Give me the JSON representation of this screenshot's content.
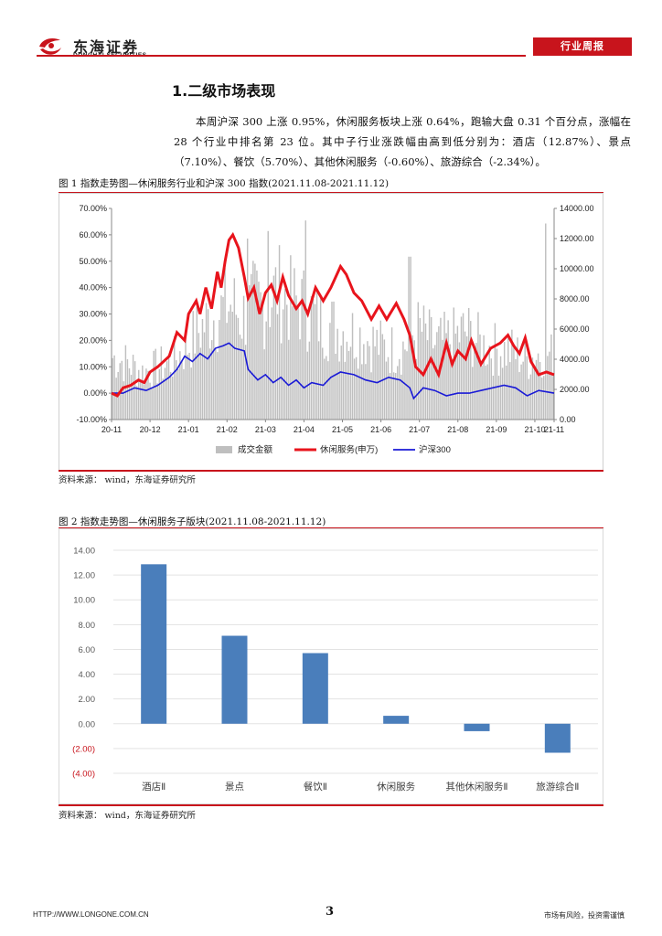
{
  "header": {
    "brand_cn": "东海证券",
    "brand_en": "DONGHAI SECURITIES",
    "report_tag": "行业周报",
    "colors": {
      "accent": "#c8141c"
    }
  },
  "section": {
    "title": "1.二级市场表现",
    "paragraph": "本周沪深 300 上涨 0.95%，休闲服务板块上涨 0.64%，跑输大盘 0.31 个百分点，涨幅在 28 个行业中排名第 23 位。其中子行业涨跌幅由高到低分别为：酒店（12.87%）、景点（7.10%）、餐饮（5.70%）、其他休闲服务（-0.60%）、旅游综合（-2.34%）。"
  },
  "figure1": {
    "caption": "图 1    指数走势图—休闲服务行业和沪深 300 指数(2021.11.08-2021.11.12)",
    "source": "资料来源：  wind，东海证券研究所"
  },
  "figure2": {
    "caption": "图 2    指数走势图—休闲服务子版块(2021.11.08-2021.11.12)",
    "source": "资料来源：  wind，东海证券研究所"
  },
  "chart_data": [
    {
      "type": "line",
      "left_axis": {
        "ylim": [
          -10,
          70
        ],
        "ticks": [
          "-10.00%",
          "0.00%",
          "10.00%",
          "20.00%",
          "30.00%",
          "40.00%",
          "50.00%",
          "60.00%",
          "70.00%"
        ]
      },
      "right_axis": {
        "ylim": [
          0,
          14000
        ],
        "ticks": [
          "0.00",
          "2000.00",
          "4000.00",
          "6000.00",
          "8000.00",
          "10000.00",
          "12000.00",
          "14000.00"
        ]
      },
      "x_ticks": [
        "20-11",
        "20-12",
        "21-01",
        "21-02",
        "21-03",
        "21-04",
        "21-05",
        "21-06",
        "21-07",
        "21-08",
        "21-09",
        "21-10",
        "21-11"
      ],
      "legend": [
        "成交金额",
        "休闲服务(申万)",
        "沪深300"
      ],
      "legend_placement": "bottom",
      "colors": {
        "volume": "#bfbfbf",
        "leisure": "#e8141c",
        "hs300": "#1a1ad6"
      },
      "series": [
        {
          "name": "休闲服务(申万)",
          "axis": "left",
          "points": [
            [
              0,
              0
            ],
            [
              0.15,
              -1
            ],
            [
              0.3,
              2
            ],
            [
              0.5,
              3
            ],
            [
              0.7,
              5
            ],
            [
              0.85,
              4
            ],
            [
              1.0,
              8
            ],
            [
              1.2,
              10
            ],
            [
              1.5,
              14
            ],
            [
              1.7,
              23
            ],
            [
              1.9,
              20
            ],
            [
              2.0,
              30
            ],
            [
              2.2,
              35
            ],
            [
              2.3,
              30
            ],
            [
              2.45,
              40
            ],
            [
              2.6,
              32
            ],
            [
              2.75,
              46
            ],
            [
              2.85,
              40
            ],
            [
              2.95,
              50
            ],
            [
              3.05,
              58
            ],
            [
              3.15,
              60
            ],
            [
              3.3,
              55
            ],
            [
              3.45,
              44
            ],
            [
              3.55,
              36
            ],
            [
              3.7,
              40
            ],
            [
              3.85,
              30
            ],
            [
              4.0,
              38
            ],
            [
              4.15,
              41
            ],
            [
              4.3,
              35
            ],
            [
              4.45,
              44
            ],
            [
              4.6,
              37
            ],
            [
              4.8,
              32
            ],
            [
              4.95,
              35
            ],
            [
              5.1,
              30
            ],
            [
              5.3,
              40
            ],
            [
              5.5,
              35
            ],
            [
              5.7,
              40
            ],
            [
              5.95,
              48
            ],
            [
              6.1,
              45
            ],
            [
              6.3,
              38
            ],
            [
              6.5,
              35
            ],
            [
              6.75,
              28
            ],
            [
              6.95,
              33
            ],
            [
              7.15,
              28
            ],
            [
              7.4,
              34
            ],
            [
              7.6,
              28
            ],
            [
              7.75,
              22
            ],
            [
              7.9,
              10
            ],
            [
              8.1,
              7
            ],
            [
              8.3,
              13
            ],
            [
              8.5,
              7
            ],
            [
              8.7,
              19
            ],
            [
              8.85,
              11
            ],
            [
              9.0,
              16
            ],
            [
              9.2,
              13
            ],
            [
              9.35,
              20
            ],
            [
              9.6,
              11
            ],
            [
              9.85,
              17
            ],
            [
              10.1,
              19
            ],
            [
              10.3,
              22
            ],
            [
              10.45,
              18
            ],
            [
              10.6,
              15
            ],
            [
              10.75,
              21
            ],
            [
              10.9,
              12
            ],
            [
              11.1,
              7
            ],
            [
              11.3,
              8
            ],
            [
              11.5,
              7
            ]
          ]
        },
        {
          "name": "沪深300",
          "axis": "left",
          "points": [
            [
              0,
              0
            ],
            [
              0.3,
              0
            ],
            [
              0.6,
              2
            ],
            [
              0.9,
              1
            ],
            [
              1.2,
              3
            ],
            [
              1.5,
              6
            ],
            [
              1.7,
              9
            ],
            [
              1.9,
              14
            ],
            [
              2.1,
              12
            ],
            [
              2.3,
              15
            ],
            [
              2.5,
              13
            ],
            [
              2.7,
              17
            ],
            [
              2.9,
              18
            ],
            [
              3.05,
              19
            ],
            [
              3.2,
              17
            ],
            [
              3.45,
              16
            ],
            [
              3.55,
              9
            ],
            [
              3.8,
              5
            ],
            [
              4.0,
              7
            ],
            [
              4.2,
              4
            ],
            [
              4.4,
              6
            ],
            [
              4.6,
              3
            ],
            [
              4.8,
              5
            ],
            [
              5.0,
              2
            ],
            [
              5.2,
              4
            ],
            [
              5.5,
              3
            ],
            [
              5.7,
              6
            ],
            [
              5.95,
              8
            ],
            [
              6.3,
              7
            ],
            [
              6.6,
              5
            ],
            [
              6.9,
              4
            ],
            [
              7.2,
              6
            ],
            [
              7.5,
              5
            ],
            [
              7.75,
              2
            ],
            [
              7.85,
              -2
            ],
            [
              8.1,
              2
            ],
            [
              8.4,
              1
            ],
            [
              8.7,
              -1
            ],
            [
              9.0,
              0
            ],
            [
              9.3,
              0
            ],
            [
              9.6,
              1
            ],
            [
              9.9,
              2
            ],
            [
              10.2,
              3
            ],
            [
              10.5,
              2
            ],
            [
              10.8,
              -1
            ],
            [
              11.1,
              1
            ],
            [
              11.5,
              0
            ]
          ]
        },
        {
          "name": "成交金额",
          "axis": "right",
          "type": "bar",
          "envelope": [
            [
              0,
              5500
            ],
            [
              0.4,
              5000
            ],
            [
              0.8,
              4200
            ],
            [
              1.2,
              4600
            ],
            [
              1.6,
              5200
            ],
            [
              2.0,
              6600
            ],
            [
              2.3,
              8000
            ],
            [
              2.6,
              9000
            ],
            [
              2.9,
              9700
            ],
            [
              3.1,
              10200
            ],
            [
              3.4,
              9000
            ],
            [
              3.7,
              10300
            ],
            [
              4.0,
              10000
            ],
            [
              4.3,
              11500
            ],
            [
              4.6,
              10500
            ],
            [
              5.0,
              10000
            ],
            [
              5.3,
              9000
            ],
            [
              5.6,
              8400
            ],
            [
              6.0,
              7900
            ],
            [
              6.4,
              7500
            ],
            [
              6.8,
              6800
            ],
            [
              7.2,
              6200
            ],
            [
              7.6,
              6400
            ],
            [
              8.0,
              8000
            ],
            [
              8.4,
              6600
            ],
            [
              8.8,
              7000
            ],
            [
              9.2,
              7800
            ],
            [
              9.6,
              6600
            ],
            [
              10.0,
              6200
            ],
            [
              10.4,
              6000
            ],
            [
              10.8,
              5300
            ],
            [
              11.2,
              6000
            ],
            [
              11.5,
              5600
            ]
          ],
          "spikes": [
            [
              3.55,
              12000
            ],
            [
              4.05,
              12500
            ],
            [
              5.05,
              13200
            ],
            [
              7.75,
              10800
            ],
            [
              11.3,
              13000
            ]
          ]
        }
      ]
    },
    {
      "type": "bar",
      "categories": [
        "酒店Ⅱ",
        "景点",
        "餐饮Ⅱ",
        "休闲服务",
        "其他休闲服务Ⅱ",
        "旅游综合Ⅱ"
      ],
      "values": [
        12.87,
        7.1,
        5.7,
        0.64,
        -0.6,
        -2.34
      ],
      "ylim": [
        -4,
        14
      ],
      "ticks": [
        "14.00",
        "12.00",
        "10.00",
        "8.00",
        "6.00",
        "4.00",
        "2.00",
        "0.00",
        "(2.00)",
        "(4.00)"
      ],
      "colors": {
        "bar": "#4a7ebb"
      },
      "grid": true
    }
  ],
  "footer": {
    "url": "HTTP://WWW.LONGONE.COM.CN",
    "page": "3",
    "note": "市场有风险，投资需谨慎"
  }
}
